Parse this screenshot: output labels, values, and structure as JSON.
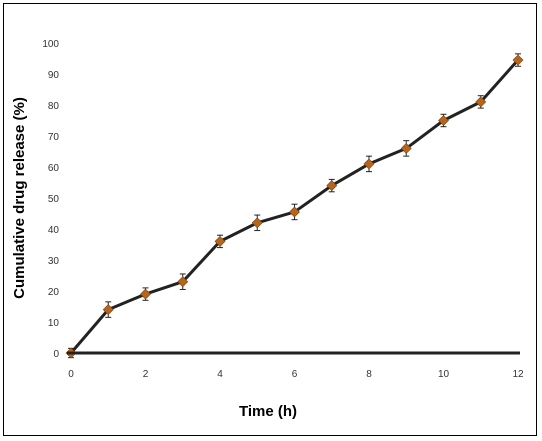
{
  "chart_data": {
    "type": "line",
    "xlabel": "Time (h)",
    "ylabel": "Cumulative drug release (%)",
    "xlim": [
      0,
      12
    ],
    "ylim": [
      0,
      100
    ],
    "xticks": [
      "0",
      "2",
      "4",
      "6",
      "8",
      "10",
      "12"
    ],
    "yticks": [
      "0",
      "10",
      "20",
      "30",
      "40",
      "50",
      "60",
      "70",
      "80",
      "90",
      "100"
    ],
    "grid": false,
    "legend": "none",
    "series": [
      {
        "x": [
          0,
          1,
          2,
          3,
          4,
          5,
          6,
          7,
          8,
          9,
          10,
          11,
          12
        ],
        "y": [
          0,
          14,
          19,
          23,
          36,
          42,
          45.5,
          54,
          61,
          66,
          75,
          81,
          94.5
        ],
        "error": [
          1.5,
          2.5,
          2,
          2.5,
          2,
          2.5,
          2.5,
          2,
          2.5,
          2.5,
          2,
          2,
          2
        ],
        "line_color": "#222222",
        "marker_color": "#b5651d"
      }
    ]
  }
}
